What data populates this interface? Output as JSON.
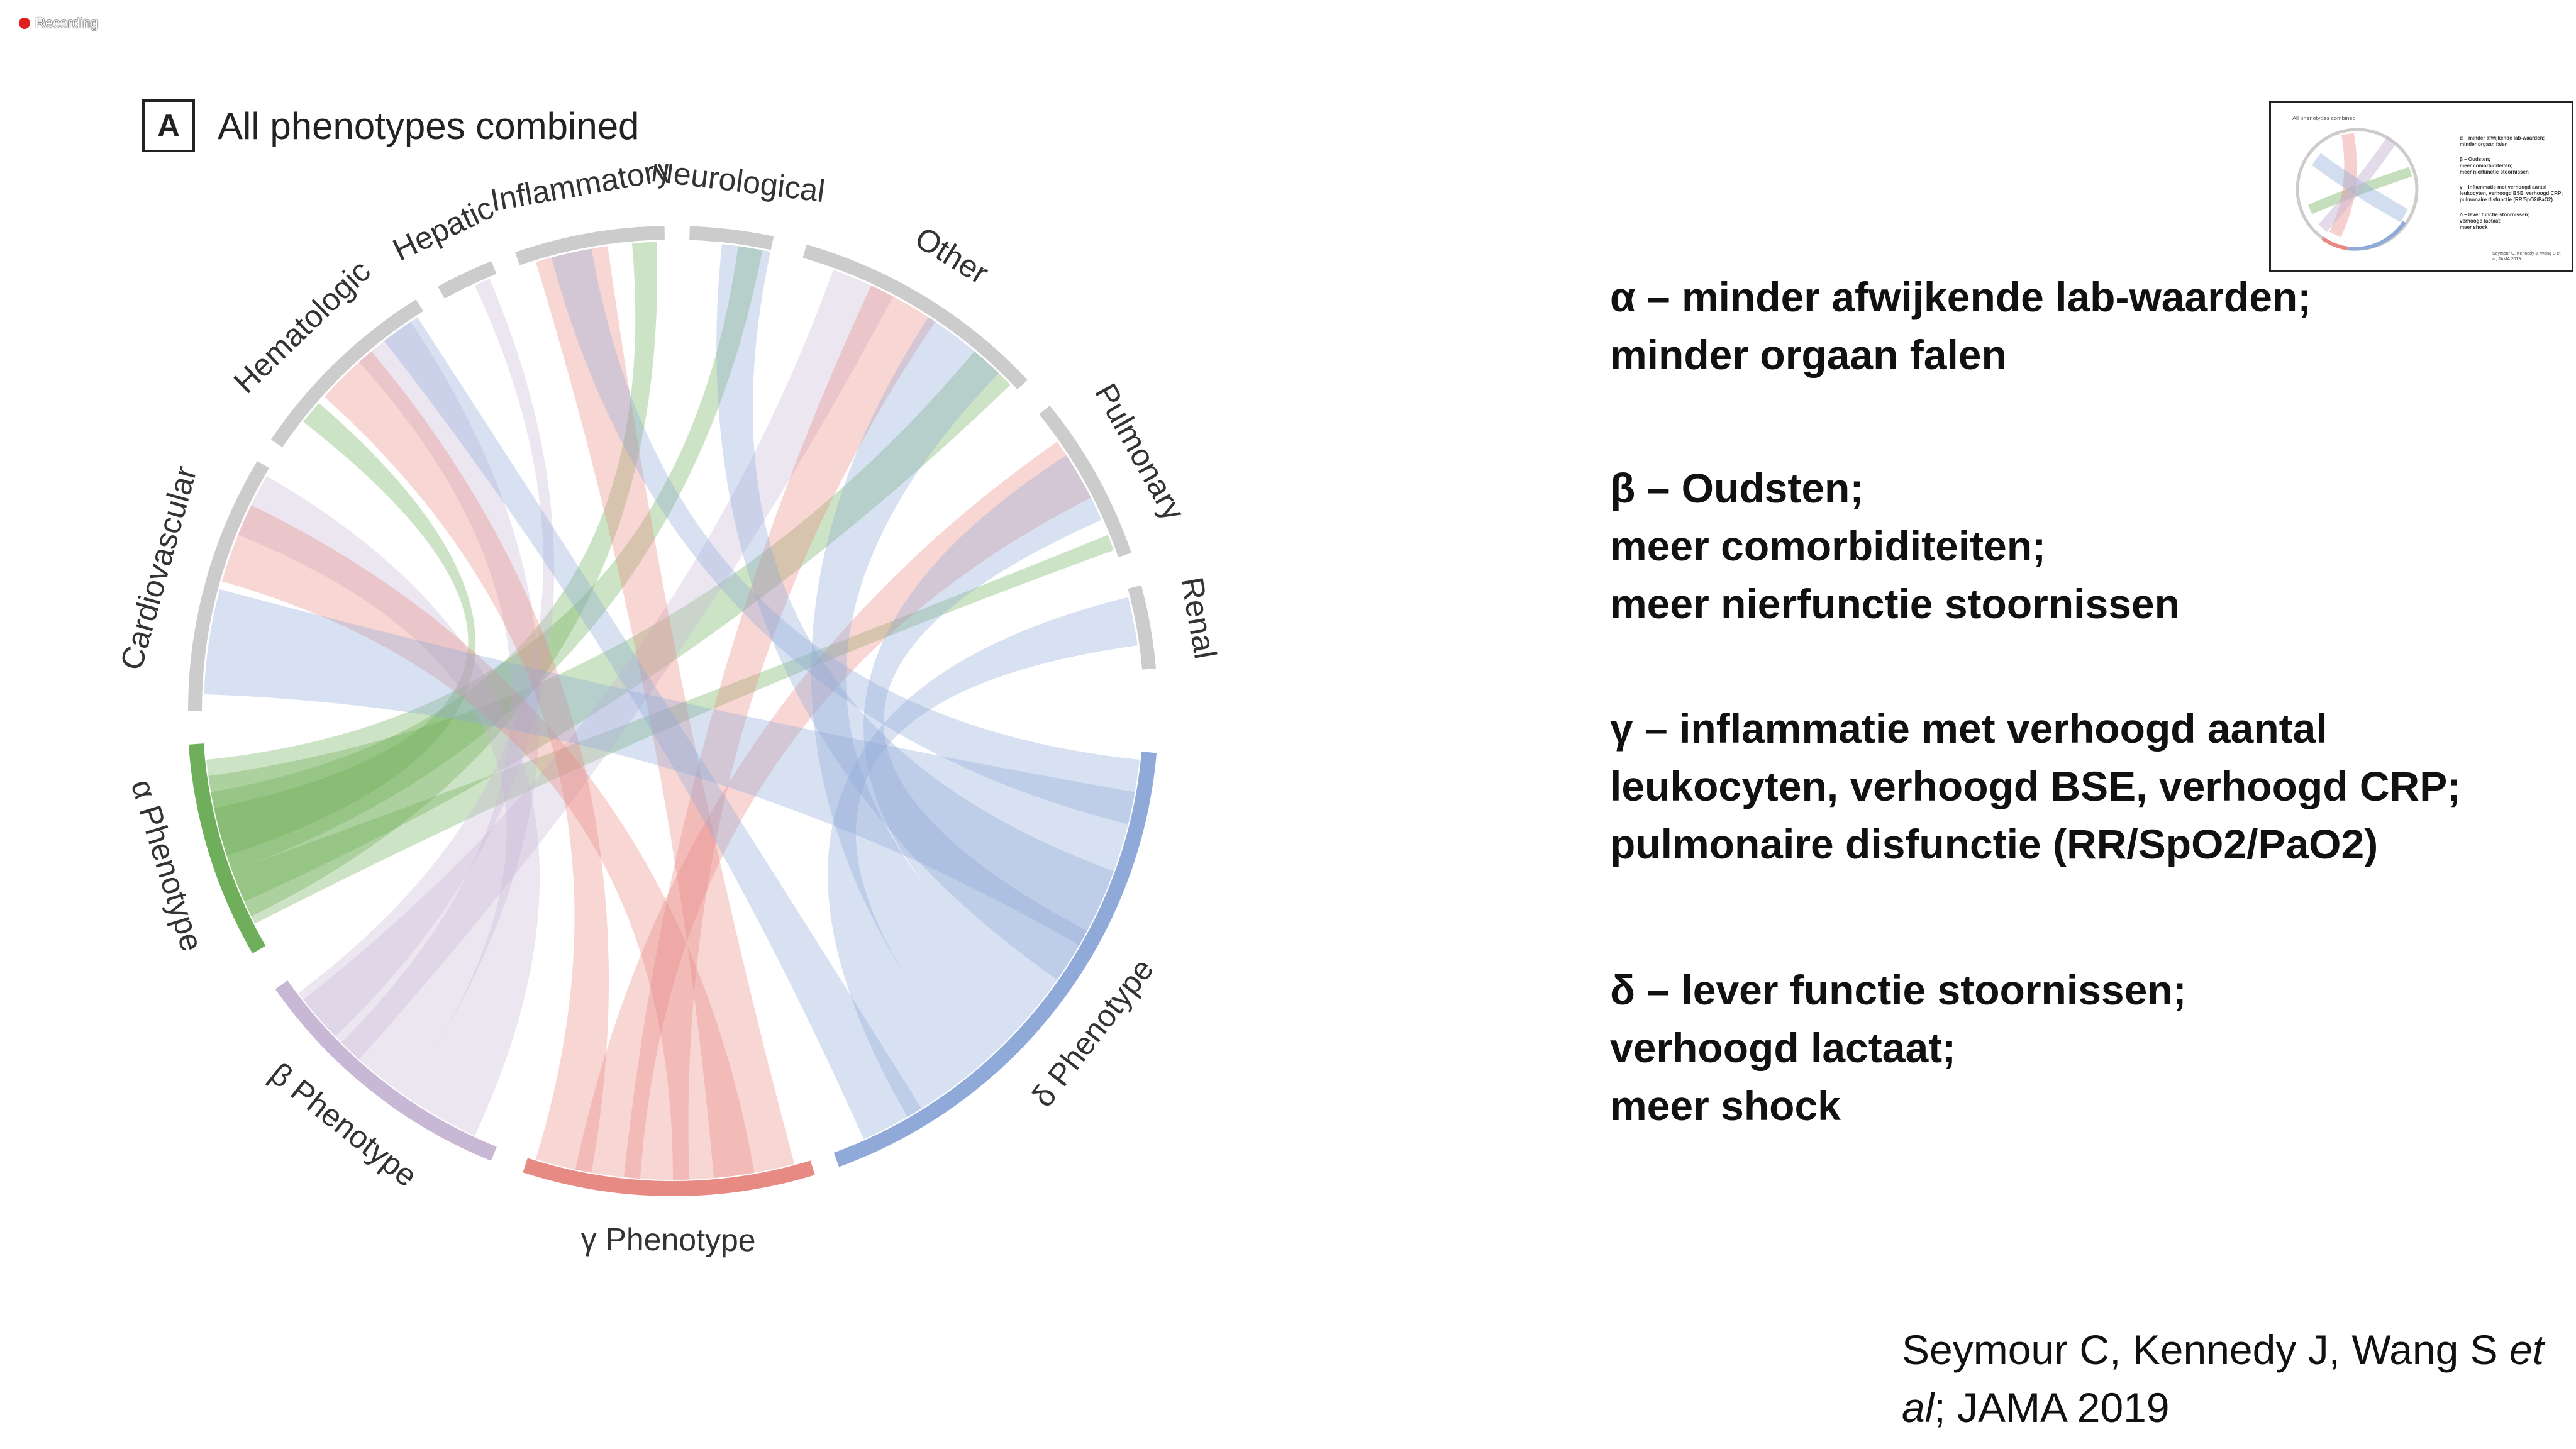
{
  "recording": {
    "label": "Recording"
  },
  "panel": {
    "letter": "A",
    "title": "All phenotypes combined"
  },
  "chord": {
    "organ_labels": [
      "Cardiovascular",
      "Hematologic",
      "Hepatic",
      "Inflammatory",
      "Neurological",
      "Other",
      "Pulmonary",
      "Renal"
    ],
    "phenotype_labels": [
      "α Phenotype",
      "β Phenotype",
      "γ Phenotype",
      "δ Phenotype"
    ],
    "colors": {
      "alpha": "#6fae5a",
      "beta": "#c9b7d6",
      "gamma": "#e88a84",
      "delta": "#8fa9d8",
      "organ_arc": "#cccccc"
    }
  },
  "descriptions": {
    "alpha": [
      "α – minder afwijkende lab-waarden;",
      "minder orgaan falen"
    ],
    "beta": [
      "β – Oudsten;",
      "meer comorbiditeiten;",
      "meer nierfunctie stoornissen"
    ],
    "gamma": [
      "γ – inflammatie met verhoogd aantal",
      "leukocyten, verhoogd BSE, verhoogd CRP;",
      "pulmonaire disfunctie (RR/SpO2/PaO2)"
    ],
    "delta": [
      "δ – lever functie stoornissen;",
      "verhoogd lactaat;",
      "meer shock"
    ]
  },
  "citation": {
    "authors": "Seymour C, Kennedy J, Wang S ",
    "etal": "et al",
    "journal": "; JAMA 2019"
  },
  "thumbnail": {
    "title": "All phenotypes combined",
    "lines": [
      "α – minder afwijkende lab-waarden;",
      "minder orgaan falen",
      "β – Oudsten;",
      "meer comorbiditeiten;",
      "meer nierfunctie stoornissen",
      "γ – inflammatie met verhoogd aantal",
      "leukocyten, verhoogd BSE, verhoogd CRP;",
      "pulmonaire disfunctie (RR/SpO2/PaO2)",
      "δ – lever functie stoornissen;",
      "verhoogd lactaat;",
      "meer shock"
    ],
    "citation": [
      "Seymour C, Kennedy J, Wang S et",
      "al; JAMA 2019"
    ]
  }
}
